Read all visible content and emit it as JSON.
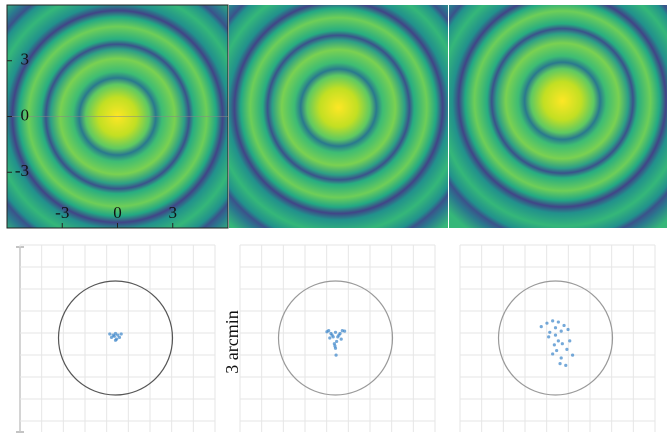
{
  "chart_data": [
    {
      "type": "image",
      "xlim": [
        -6,
        6
      ],
      "ylim": [
        -6,
        6
      ],
      "xticks": [
        -3,
        0,
        3
      ],
      "yticks": [
        -3,
        0,
        3
      ]
    },
    {
      "type": "scatter",
      "label": "3 arcmin",
      "xlim": [
        -1,
        1
      ],
      "ylim": [
        -1,
        1
      ],
      "color": "#3a84c9",
      "series": [
        {
          "x": [
            0,
            -0.07,
            0.07,
            -0.04,
            0.04,
            0,
            0.1,
            -0.1,
            0.02,
            -0.02
          ],
          "y": [
            -0.04,
            0.01,
            0.01,
            0.05,
            0.05,
            0.08,
            0.07,
            0.07,
            -0.02,
            0.03
          ]
        },
        {
          "x": [
            0,
            -0.12,
            0.12,
            -0.08,
            0.08,
            -0.04,
            0.04,
            0.02,
            -0.02,
            0,
            0.06,
            -0.06,
            0.01,
            -0.01,
            0.16,
            -0.15,
            0.1,
            -0.1
          ],
          "y": [
            0.1,
            0.13,
            0.13,
            0.08,
            0.08,
            0.02,
            0.02,
            -0.06,
            -0.1,
            -0.18,
            0.05,
            0.05,
            -0.3,
            -0.14,
            0.12,
            0.11,
            -0.02,
            0
          ]
        },
        {
          "x": [
            -0.25,
            -0.15,
            -0.05,
            0.05,
            0.15,
            0.22,
            -0.1,
            0,
            0.1,
            0.05,
            -0.02,
            0.12,
            0.2,
            0.3,
            -0.05,
            0.08,
            0.18,
            0.02,
            -0.12,
            0.25,
            0.1,
            0.0
          ],
          "y": [
            0.2,
            0.26,
            0.3,
            0.28,
            0.22,
            0.15,
            0.1,
            0.05,
            0.12,
            -0.05,
            -0.12,
            -0.1,
            -0.2,
            -0.3,
            -0.28,
            -0.45,
            -0.48,
            -0.22,
            0.02,
            -0.05,
            -0.35,
            0.18
          ]
        }
      ]
    }
  ]
}
